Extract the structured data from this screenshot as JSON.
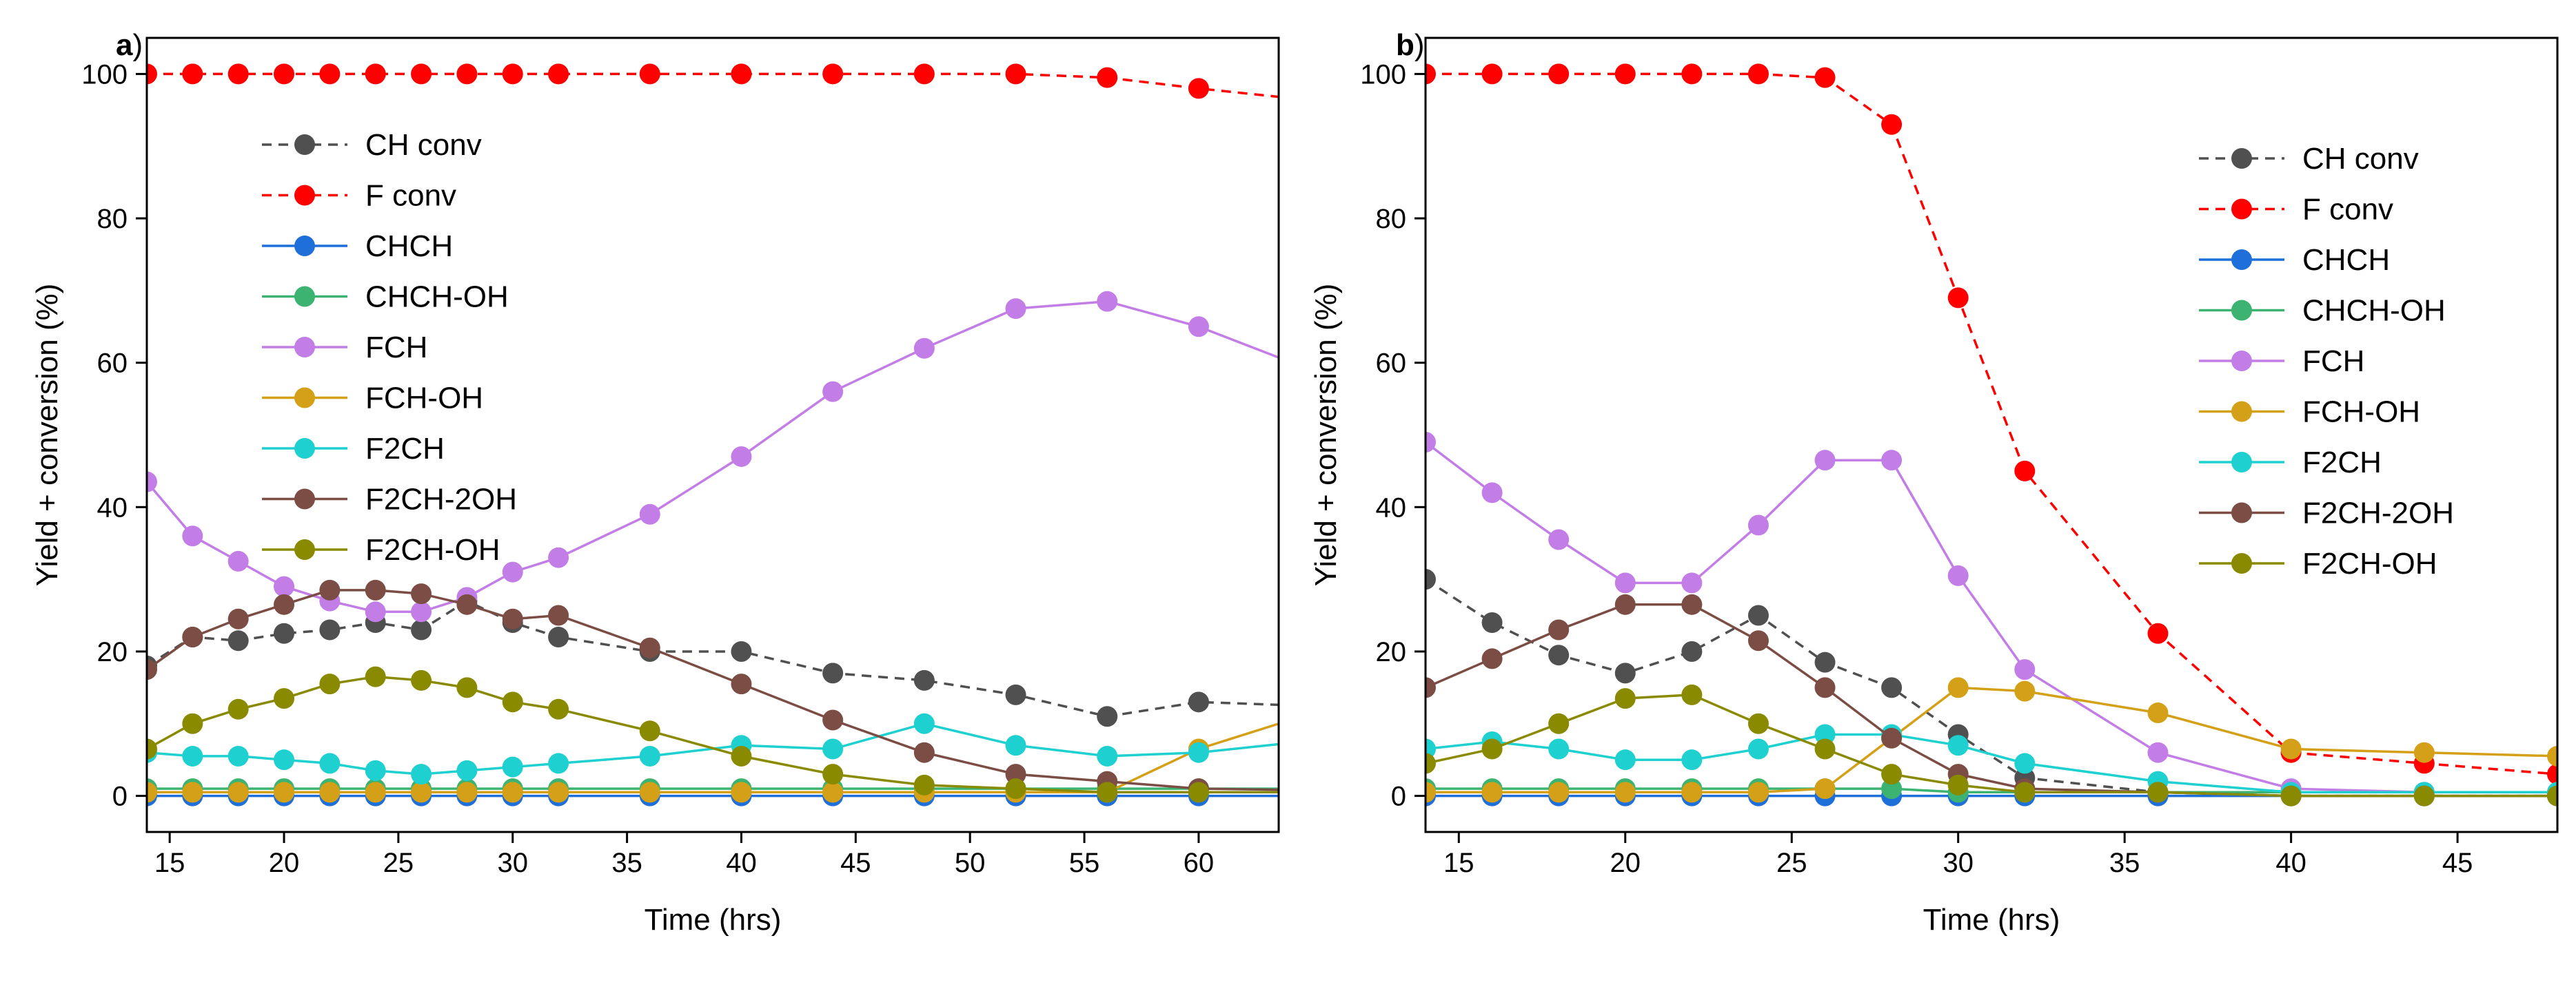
{
  "series_styles": [
    {
      "name": "CH conv",
      "color": "#505050",
      "dashed": true
    },
    {
      "name": "F conv",
      "color": "#ff0000",
      "dashed": true
    },
    {
      "name": "CHCH",
      "color": "#1e6fd9",
      "dashed": false
    },
    {
      "name": "CHCH-OH",
      "color": "#3cb371",
      "dashed": false
    },
    {
      "name": "FCH",
      "color": "#c27ee6",
      "dashed": false
    },
    {
      "name": "FCH-OH",
      "color": "#d4a017",
      "dashed": false
    },
    {
      "name": "F2CH",
      "color": "#1fd0d0",
      "dashed": false
    },
    {
      "name": "F2CH-2OH",
      "color": "#7b4d44",
      "dashed": false
    },
    {
      "name": "F2CH-OH",
      "color": "#8a8a00",
      "dashed": false
    }
  ],
  "chart_data": [
    {
      "panel_label": "a",
      "panel_paren": ")",
      "type": "line",
      "xlabel": "Time (hrs)",
      "ylabel": "Yield + conversion (%)",
      "xlim": [
        14,
        63.5
      ],
      "ylim": [
        -5,
        105
      ],
      "xticks": [
        15,
        20,
        25,
        30,
        35,
        40,
        45,
        50,
        55,
        60
      ],
      "yticks": [
        0,
        20,
        40,
        60,
        80,
        100
      ],
      "legend_position": "upper-left",
      "x": [
        14,
        16,
        18,
        20,
        22,
        24,
        26,
        28,
        30,
        32,
        36,
        40,
        44,
        48,
        52,
        56,
        60
      ],
      "series": [
        {
          "name": "CH conv",
          "values": [
            18,
            22,
            21.5,
            22.5,
            23,
            24,
            23,
            27,
            24,
            22,
            20,
            20,
            17,
            16,
            14,
            11,
            13
          ],
          "extend": 12.5
        },
        {
          "name": "F conv",
          "values": [
            100,
            100,
            100,
            100,
            100,
            100,
            100,
            100,
            100,
            100,
            100,
            100,
            100,
            100,
            100,
            99.5,
            98
          ],
          "extend": 96.5
        },
        {
          "name": "CHCH",
          "values": [
            0,
            0,
            0,
            0,
            0,
            0,
            0,
            0,
            0,
            0,
            0,
            0,
            0,
            0,
            0,
            0,
            0
          ],
          "extend": 0
        },
        {
          "name": "CHCH-OH",
          "values": [
            1,
            1,
            1,
            1,
            1,
            1,
            1,
            1,
            1,
            1,
            1,
            1,
            1,
            1,
            1,
            1,
            1
          ],
          "extend": 1
        },
        {
          "name": "FCH",
          "values": [
            43.5,
            36,
            32.5,
            29,
            27,
            25.5,
            25.5,
            27.5,
            31,
            33,
            39,
            47,
            56,
            62,
            67.5,
            68.5,
            65
          ],
          "extend": 59.5
        },
        {
          "name": "FCH-OH",
          "values": [
            0.5,
            0.5,
            0.5,
            0.5,
            0.5,
            0.5,
            0.5,
            0.5,
            0.5,
            0.5,
            0.5,
            0.5,
            0.5,
            0.5,
            0.5,
            0.5,
            6.5
          ],
          "extend": 11
        },
        {
          "name": "F2CH",
          "values": [
            6,
            5.5,
            5.5,
            5,
            4.5,
            3.5,
            3,
            3.5,
            4,
            4.5,
            5.5,
            7,
            6.5,
            10,
            7,
            5.5,
            6
          ],
          "extend": 7.5
        },
        {
          "name": "F2CH-2OH",
          "values": [
            17.5,
            22,
            24.5,
            26.5,
            28.5,
            28.5,
            28,
            26.5,
            24.5,
            25,
            20.5,
            15.5,
            10.5,
            6,
            3,
            2,
            1
          ],
          "extend": 0.8
        },
        {
          "name": "F2CH-OH",
          "values": [
            6.5,
            10,
            12,
            13.5,
            15.5,
            16.5,
            16,
            15,
            13,
            12,
            9,
            5.5,
            3,
            1.5,
            1,
            0.5,
            0.5
          ],
          "extend": 0.5
        }
      ]
    },
    {
      "panel_label": "b",
      "panel_paren": ")",
      "type": "line",
      "xlabel": "Time (hrs)",
      "ylabel": "Yield + conversion (%)",
      "xlim": [
        14,
        48
      ],
      "ylim": [
        -5,
        105
      ],
      "xticks": [
        15,
        20,
        25,
        30,
        35,
        40,
        45
      ],
      "yticks": [
        0,
        20,
        40,
        60,
        80,
        100
      ],
      "legend_position": "upper-right",
      "x": [
        14,
        16,
        18,
        20,
        22,
        24,
        26,
        28,
        30,
        32,
        36,
        40,
        44,
        48
      ],
      "series": [
        {
          "name": "CH conv",
          "values": [
            30,
            24,
            19.5,
            17,
            20,
            25,
            18.5,
            15,
            8.5,
            2.5,
            0.5,
            0,
            0,
            0
          ]
        },
        {
          "name": "F conv",
          "values": [
            100,
            100,
            100,
            100,
            100,
            100,
            99.5,
            93,
            69,
            45,
            22.5,
            6,
            4.5,
            3
          ]
        },
        {
          "name": "CHCH",
          "values": [
            0,
            0,
            0,
            0,
            0,
            0,
            0,
            0,
            0,
            0,
            0,
            0,
            0,
            0
          ]
        },
        {
          "name": "CHCH-OH",
          "values": [
            1,
            1,
            1,
            1,
            1,
            1,
            1,
            1,
            0.5,
            0.5,
            0.5,
            0.5,
            0.5,
            0.5
          ]
        },
        {
          "name": "FCH",
          "values": [
            49,
            42,
            35.5,
            29.5,
            29.5,
            37.5,
            46.5,
            46.5,
            30.5,
            17.5,
            6,
            1,
            0.5,
            0.5
          ]
        },
        {
          "name": "FCH-OH",
          "values": [
            0.5,
            0.5,
            0.5,
            0.5,
            0.5,
            0.5,
            1,
            8,
            15,
            14.5,
            11.5,
            6.5,
            6,
            5.5
          ]
        },
        {
          "name": "F2CH",
          "values": [
            6.5,
            7.5,
            6.5,
            5,
            5,
            6.5,
            8.5,
            8.5,
            7,
            4.5,
            2,
            0.5,
            0.5,
            0.5
          ]
        },
        {
          "name": "F2CH-2OH",
          "values": [
            15,
            19,
            23,
            26.5,
            26.5,
            21.5,
            15,
            8,
            3,
            1,
            0.5,
            0,
            0,
            0
          ]
        },
        {
          "name": "F2CH-OH",
          "values": [
            4.5,
            6.5,
            10,
            13.5,
            14,
            10,
            6.5,
            3,
            1.5,
            0.5,
            0.5,
            0,
            0,
            0
          ]
        }
      ]
    }
  ]
}
